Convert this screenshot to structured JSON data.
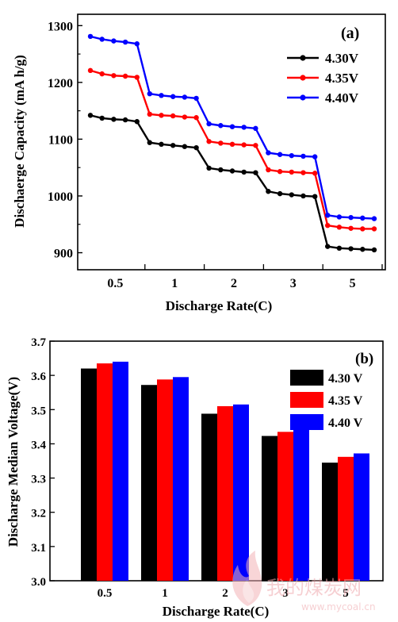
{
  "chart_data": [
    {
      "type": "line",
      "panel_label": "(a)",
      "xlabel": "Discharge Rate(C)",
      "ylabel": "Dischaerge Capacity (mA h/g)",
      "x_tick_labels": [
        "0.5",
        "1",
        "2",
        "3",
        "5"
      ],
      "ylim": [
        870,
        1320
      ],
      "y_ticks": [
        900,
        1000,
        1100,
        1200,
        1300
      ],
      "legend_position": "top-right",
      "series": [
        {
          "name": "4.30V",
          "color": "#000000",
          "values": [
            [
              1142,
              1137,
              1135,
              1134,
              1131
            ],
            [
              1094,
              1091,
              1089,
              1087,
              1085
            ],
            [
              1049,
              1046,
              1044,
              1042,
              1041
            ],
            [
              1008,
              1004,
              1002,
              1000,
              999
            ],
            [
              911,
              908,
              907,
              906,
              905
            ]
          ]
        },
        {
          "name": "4.35V",
          "color": "#ff0000",
          "values": [
            [
              1221,
              1215,
              1212,
              1211,
              1209
            ],
            [
              1144,
              1142,
              1141,
              1139,
              1138
            ],
            [
              1096,
              1093,
              1091,
              1090,
              1089
            ],
            [
              1046,
              1043,
              1042,
              1041,
              1040
            ],
            [
              948,
              945,
              943,
              942,
              942
            ]
          ]
        },
        {
          "name": "4.40V",
          "color": "#0000ff",
          "values": [
            [
              1281,
              1276,
              1273,
              1271,
              1268
            ],
            [
              1180,
              1177,
              1175,
              1174,
              1172
            ],
            [
              1127,
              1124,
              1122,
              1121,
              1119
            ],
            [
              1076,
              1073,
              1071,
              1070,
              1069
            ],
            [
              966,
              963,
              962,
              961,
              960
            ]
          ]
        }
      ]
    },
    {
      "type": "bar",
      "panel_label": "(b)",
      "xlabel": "Discharge Rate(C)",
      "ylabel": "Discharge Median Voltage(V)",
      "categories": [
        "0.5",
        "1",
        "2",
        "3",
        "5"
      ],
      "ylim": [
        3.0,
        3.7
      ],
      "y_ticks": [
        "3.0",
        "3.1",
        "3.2",
        "3.3",
        "3.4",
        "3.5",
        "3.6",
        "3.7"
      ],
      "legend_position": "top-right",
      "series": [
        {
          "name": "4.30 V",
          "color": "#000000",
          "values": [
            3.62,
            3.572,
            3.488,
            3.423,
            3.345
          ]
        },
        {
          "name": "4.35 V",
          "color": "#ff0000",
          "values": [
            3.635,
            3.588,
            3.51,
            3.435,
            3.362
          ]
        },
        {
          "name": "4.40 V",
          "color": "#0000ff",
          "values": [
            3.64,
            3.595,
            3.515,
            3.452,
            3.372
          ]
        }
      ]
    }
  ],
  "watermark": {
    "logo_text": "我的煤炭网",
    "url": "www.mycoal.cn"
  }
}
